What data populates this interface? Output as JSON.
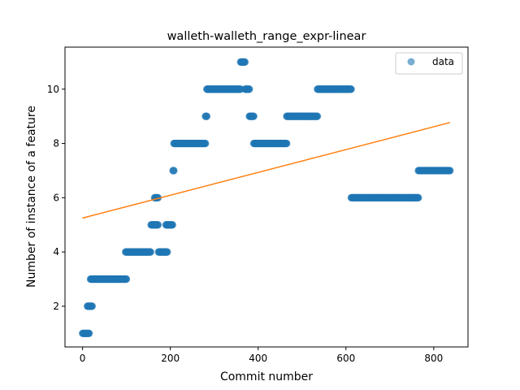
{
  "chart_data": {
    "type": "scatter",
    "title": "walleth-walleth_range_expr-linear",
    "xlabel": "Commit number",
    "ylabel": "Number of instance of a feature",
    "xlim": [
      -40,
      878
    ],
    "ylim": [
      0.5,
      11.55
    ],
    "xticks": [
      0,
      200,
      400,
      600,
      800
    ],
    "yticks": [
      2,
      4,
      6,
      8,
      10
    ],
    "legend": {
      "position": "top-right",
      "entries": [
        "data"
      ]
    },
    "grid": false,
    "series": [
      {
        "name": "data",
        "kind": "scatter",
        "color": "#1f77b4",
        "segments": [
          {
            "x_start": 0,
            "x_end": 15,
            "y": 1
          },
          {
            "x_start": 11,
            "x_end": 22,
            "y": 2
          },
          {
            "x_start": 18,
            "x_end": 100,
            "y": 3
          },
          {
            "x_start": 98,
            "x_end": 155,
            "y": 4
          },
          {
            "x_start": 156,
            "x_end": 172,
            "y": 5
          },
          {
            "x_start": 164,
            "x_end": 172,
            "y": 6
          },
          {
            "x_start": 173,
            "x_end": 193,
            "y": 4
          },
          {
            "x_start": 190,
            "x_end": 205,
            "y": 5
          },
          {
            "x_start": 206,
            "x_end": 208,
            "y": 7
          },
          {
            "x_start": 208,
            "x_end": 280,
            "y": 8
          },
          {
            "x_start": 280,
            "x_end": 283,
            "y": 9
          },
          {
            "x_start": 283,
            "x_end": 360,
            "y": 10
          },
          {
            "x_start": 360,
            "x_end": 370,
            "y": 11
          },
          {
            "x_start": 370,
            "x_end": 380,
            "y": 10
          },
          {
            "x_start": 380,
            "x_end": 390,
            "y": 9
          },
          {
            "x_start": 390,
            "x_end": 465,
            "y": 8
          },
          {
            "x_start": 465,
            "x_end": 535,
            "y": 9
          },
          {
            "x_start": 535,
            "x_end": 612,
            "y": 10
          },
          {
            "x_start": 612,
            "x_end": 765,
            "y": 6
          },
          {
            "x_start": 765,
            "x_end": 837,
            "y": 7
          }
        ]
      },
      {
        "name": "",
        "kind": "line",
        "color": "#ff7f0e",
        "x": [
          0,
          837
        ],
        "y": [
          5.25,
          8.77
        ]
      }
    ]
  }
}
